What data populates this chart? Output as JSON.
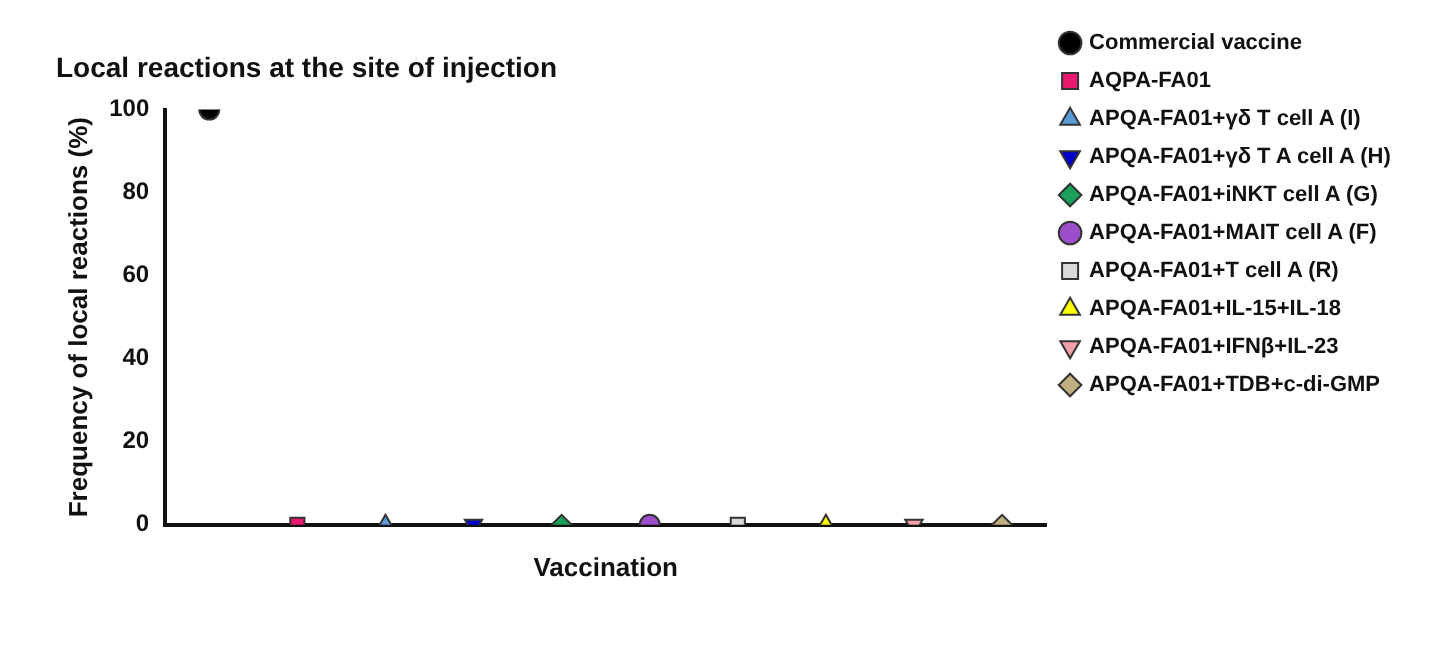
{
  "chart_data": {
    "type": "scatter",
    "title": "Local reactions at the site of injection",
    "xlabel": "Vaccination",
    "ylabel": "Frequency of local reactions (%)",
    "categories": [
      null,
      null,
      null,
      null,
      null,
      null,
      null,
      null,
      null,
      null
    ],
    "series": [
      {
        "name": "Commercial vaccine",
        "color": "#000000",
        "marker": "circle",
        "values": [
          100,
          null,
          null,
          null,
          null,
          null,
          null,
          null,
          null,
          null
        ]
      },
      {
        "name": "AQPA-FA01",
        "color": "#e8196e",
        "marker": "square",
        "values": [
          null,
          0,
          null,
          null,
          null,
          null,
          null,
          null,
          null,
          null
        ]
      },
      {
        "name": "APQA-FA01+γδ T cell A (I)",
        "color": "#5b9bd5",
        "marker": "triangle",
        "values": [
          null,
          null,
          0,
          null,
          null,
          null,
          null,
          null,
          null,
          null
        ]
      },
      {
        "name": "APQA-FA01+γδ T A cell A (H)",
        "color": "#0000cc",
        "marker": "triangle-down",
        "values": [
          null,
          null,
          null,
          0,
          null,
          null,
          null,
          null,
          null,
          null
        ]
      },
      {
        "name": "APQA-FA01+iNKT cell A (G)",
        "color": "#1aa05a",
        "marker": "diamond",
        "values": [
          null,
          null,
          null,
          null,
          0,
          null,
          null,
          null,
          null,
          null
        ]
      },
      {
        "name": "APQA-FA01+MAIT cell A (F)",
        "color": "#9b4dca",
        "marker": "circle",
        "values": [
          null,
          null,
          null,
          null,
          null,
          0,
          null,
          null,
          null,
          null
        ]
      },
      {
        "name": "APQA-FA01+T cell A (R)",
        "color": "#d9d9d9",
        "marker": "square",
        "values": [
          null,
          null,
          null,
          null,
          null,
          null,
          0,
          null,
          null,
          null
        ]
      },
      {
        "name": "APQA-FA01+IL-15+IL-18",
        "color": "#ffff00",
        "marker": "triangle",
        "values": [
          null,
          null,
          null,
          null,
          null,
          null,
          null,
          0,
          null,
          null
        ]
      },
      {
        "name": "APQA-FA01+IFNβ+IL-23",
        "color": "#f4a0a8",
        "marker": "triangle-down",
        "values": [
          null,
          null,
          null,
          null,
          null,
          null,
          null,
          null,
          0,
          null
        ]
      },
      {
        "name": "APQA-FA01+TDB+c-di-GMP",
        "color": "#c0b080",
        "marker": "diamond",
        "values": [
          null,
          null,
          null,
          null,
          null,
          null,
          null,
          null,
          null,
          0
        ]
      }
    ],
    "ylim": [
      0,
      100
    ],
    "yticks": [
      0,
      20,
      40,
      60,
      80,
      100
    ],
    "grid": false,
    "legend": "right",
    "tick_labels": "y"
  }
}
